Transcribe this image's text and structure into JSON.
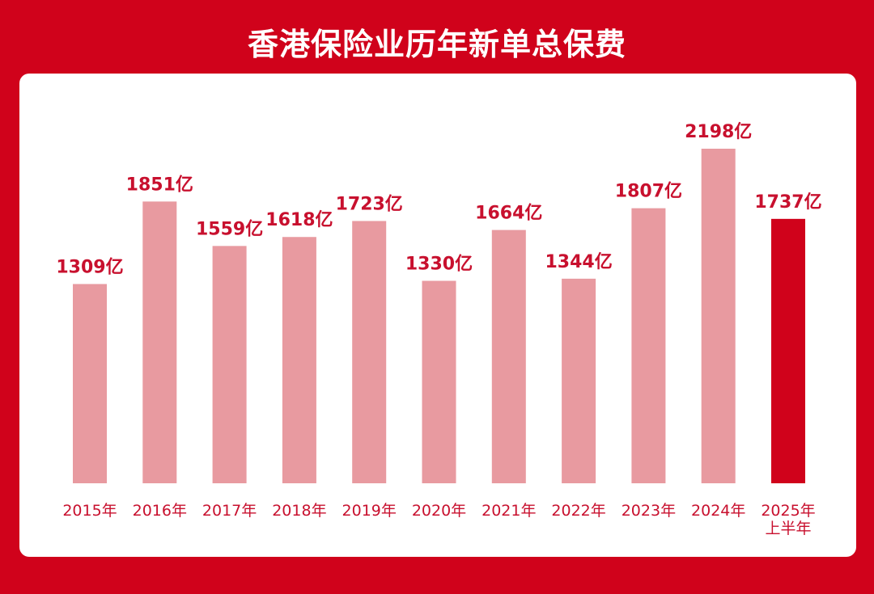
{
  "title": "香港保险业历年新单总保费",
  "colors": {
    "background": "#d0021b",
    "panel": "#ffffff",
    "bar": "#e89aa0",
    "highlight_bar": "#d0021b",
    "label": "#c8102e"
  },
  "chart_data": {
    "type": "bar",
    "title": "香港保险业历年新单总保费",
    "categories": [
      "2015年",
      "2016年",
      "2017年",
      "2018年",
      "2019年",
      "2020年",
      "2021年",
      "2022年",
      "2023年",
      "2024年",
      "2025年\n上半年"
    ],
    "values": [
      1309,
      1851,
      1559,
      1618,
      1723,
      1330,
      1664,
      1344,
      1807,
      2198,
      1737
    ],
    "value_labels": [
      "1309亿",
      "1851亿",
      "1559亿",
      "1618亿",
      "1723亿",
      "1330亿",
      "1664亿",
      "1344亿",
      "1807亿",
      "2198亿",
      "1737亿"
    ],
    "highlight": "2025年\n上半年",
    "unit": "亿",
    "ylim": [
      0,
      2198
    ],
    "grid": false,
    "legend": "none"
  }
}
